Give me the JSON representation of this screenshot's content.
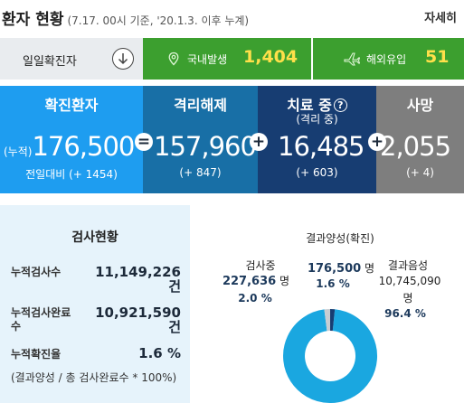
{
  "header": {
    "title": "환자 현황",
    "subtitle": "(7.17. 00시 기준, '20.1.3. 이후 누계)",
    "more_label": "자세히"
  },
  "daily": {
    "label": "일일확진자",
    "domestic": {
      "label": "국내발생",
      "value": "1,404",
      "icon": "location-pin-icon"
    },
    "overseas": {
      "label": "해외유입",
      "value": "51",
      "icon": "airplane-icon"
    }
  },
  "stats": {
    "confirmed": {
      "title": "확진환자",
      "prefix": "(누적)",
      "value": "176,500",
      "delta": "전일대비 (+ 1454)"
    },
    "released": {
      "title": "격리해제",
      "value": "157,960",
      "delta": "(+ 847)"
    },
    "treating": {
      "title": "치료 중",
      "subtitle": "(격리 중)",
      "value": "16,485",
      "delta": "(+ 603)"
    },
    "deaths": {
      "title": "사망",
      "value": "2,055",
      "delta": "(+ 4)"
    },
    "operators": {
      "equals": "=",
      "plus": "+"
    }
  },
  "test": {
    "title": "검사현황",
    "rows": [
      {
        "label": "누적검사수",
        "value": "11,149,226",
        "unit": "건"
      },
      {
        "label": "누적검사완료수",
        "value": "10,921,590",
        "unit": "건"
      },
      {
        "label": "누적확진율",
        "value": "1.6 %"
      }
    ],
    "note": "(결과양성 / 총 검사완료수 * 100%)"
  },
  "donut": {
    "testing": {
      "label": "검사중",
      "value": "227,636",
      "unit": "명",
      "percent": "2.0 %"
    },
    "positive": {
      "label": "결과양성(확진)",
      "value": "176,500",
      "unit": "명",
      "percent": "1.6 %"
    },
    "negative": {
      "label": "결과음성",
      "value": "10,745,090",
      "unit": "명",
      "percent": "96.4 %"
    },
    "colors": {
      "negative": "#1aa7e0",
      "positive": "#173d72",
      "testing": "#c8cdd2"
    }
  },
  "colors": {
    "daily_green": "#3c9f2f",
    "daily_value": "#ffe04a",
    "confirmed_bg": "#1e9df0",
    "released_bg": "#186fa6",
    "treating_bg": "#173d72",
    "deaths_bg": "#7e7e7e",
    "test_bg": "#e6f3fb"
  }
}
